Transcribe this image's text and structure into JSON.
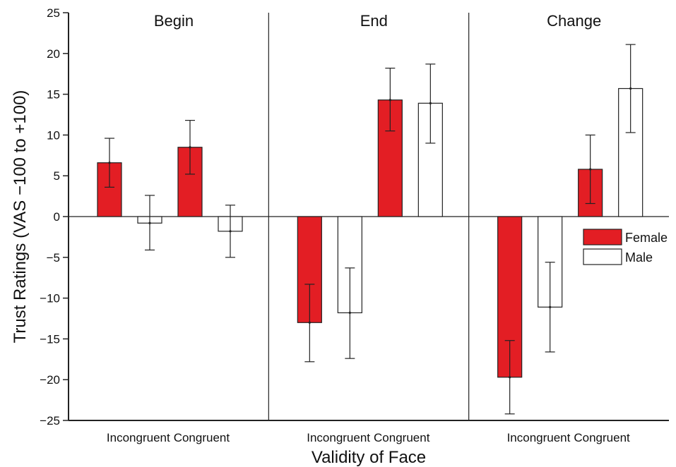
{
  "chart_data": {
    "type": "bar",
    "ylabel": "Trust Ratings (VAS −100 to +100)",
    "xlabel": "Validity of Face",
    "ylim": [
      -25,
      25
    ],
    "yticks": [
      25,
      20,
      15,
      10,
      5,
      0,
      -5,
      -10,
      -15,
      -20,
      -25
    ],
    "ytick_labels": [
      "25",
      "20",
      "15",
      "10",
      "5",
      "0",
      "−5",
      "−10",
      "−15",
      "−20",
      "−25"
    ],
    "grid": false,
    "legend_position": "right",
    "series": [
      {
        "name": "Female",
        "color": "#e31e24"
      },
      {
        "name": "Male",
        "color": "#ffffff"
      }
    ],
    "panels": [
      {
        "title": "Begin",
        "categories": [
          "Incongruent",
          "Congruent"
        ],
        "values": {
          "Female": [
            6.6,
            8.5
          ],
          "Male": [
            -0.8,
            -1.8
          ]
        },
        "error": {
          "Female": [
            [
              3.6,
              9.6
            ],
            [
              5.2,
              11.8
            ]
          ],
          "Male": [
            [
              -4.1,
              2.6
            ],
            [
              -5.0,
              1.4
            ]
          ]
        }
      },
      {
        "title": "End",
        "categories": [
          "Incongruent",
          "Congruent"
        ],
        "values": {
          "Female": [
            -13.0,
            14.3
          ],
          "Male": [
            -11.8,
            13.9
          ]
        },
        "error": {
          "Female": [
            [
              -17.8,
              -8.3
            ],
            [
              10.5,
              18.2
            ]
          ],
          "Male": [
            [
              -17.4,
              -6.3
            ],
            [
              9.0,
              18.7
            ]
          ]
        }
      },
      {
        "title": "Change",
        "categories": [
          "Incongruent",
          "Congruent"
        ],
        "values": {
          "Female": [
            -19.7,
            5.8
          ],
          "Male": [
            -11.1,
            15.7
          ]
        },
        "error": {
          "Female": [
            [
              -24.2,
              -15.2
            ],
            [
              1.6,
              10.0
            ]
          ],
          "Male": [
            [
              -16.6,
              -5.6
            ],
            [
              10.3,
              21.1
            ]
          ]
        }
      }
    ]
  }
}
